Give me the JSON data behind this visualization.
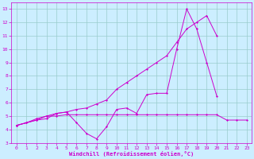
{
  "xlabel": "Windchill (Refroidissement éolien,°C)",
  "bg_color": "#cceeff",
  "grid_color": "#99cccc",
  "line_color": "#cc00cc",
  "xlim": [
    -0.5,
    23.5
  ],
  "ylim": [
    3,
    13.5
  ],
  "xticks": [
    0,
    1,
    2,
    3,
    4,
    5,
    6,
    7,
    8,
    9,
    10,
    11,
    12,
    13,
    14,
    15,
    16,
    17,
    18,
    19,
    20,
    21,
    22,
    23
  ],
  "yticks": [
    3,
    4,
    5,
    6,
    7,
    8,
    9,
    10,
    11,
    12,
    13
  ],
  "line1_x": [
    0,
    1,
    2,
    3,
    4,
    5,
    6,
    7,
    8,
    9,
    10,
    11,
    12,
    13,
    14,
    15,
    16,
    17,
    18,
    19,
    20,
    21,
    22
  ],
  "line1_y": [
    4.3,
    4.5,
    4.7,
    4.8,
    5.2,
    5.3,
    4.5,
    3.7,
    3.3,
    4.2,
    5.5,
    5.6,
    5.2,
    6.6,
    6.7,
    6.7,
    10.0,
    13.0,
    11.5,
    9.0,
    6.5,
    null,
    null
  ],
  "line2_x": [
    0,
    1,
    2,
    3,
    4,
    5,
    6,
    7,
    8,
    9,
    10,
    11,
    12,
    13,
    14,
    15,
    16,
    17,
    18,
    19,
    20,
    21,
    22,
    23
  ],
  "line2_y": [
    4.3,
    4.5,
    4.7,
    5.0,
    5.2,
    5.3,
    5.5,
    5.6,
    5.9,
    6.2,
    7.0,
    7.5,
    8.0,
    8.5,
    9.0,
    9.5,
    10.5,
    11.5,
    12.0,
    12.5,
    11.0,
    null,
    null,
    null
  ],
  "line3_x": [
    0,
    1,
    2,
    3,
    4,
    5,
    6,
    7,
    8,
    9,
    10,
    11,
    12,
    13,
    14,
    15,
    16,
    17,
    18,
    19,
    20,
    21,
    22,
    23
  ],
  "line3_y": [
    4.3,
    4.5,
    4.8,
    5.0,
    5.0,
    5.1,
    5.1,
    5.1,
    5.1,
    5.1,
    5.1,
    5.1,
    5.1,
    5.1,
    5.1,
    5.1,
    5.1,
    5.1,
    5.1,
    5.1,
    5.1,
    4.7,
    4.7,
    4.7
  ],
  "tick_fontsize": 4.5,
  "xlabel_fontsize": 5.0
}
